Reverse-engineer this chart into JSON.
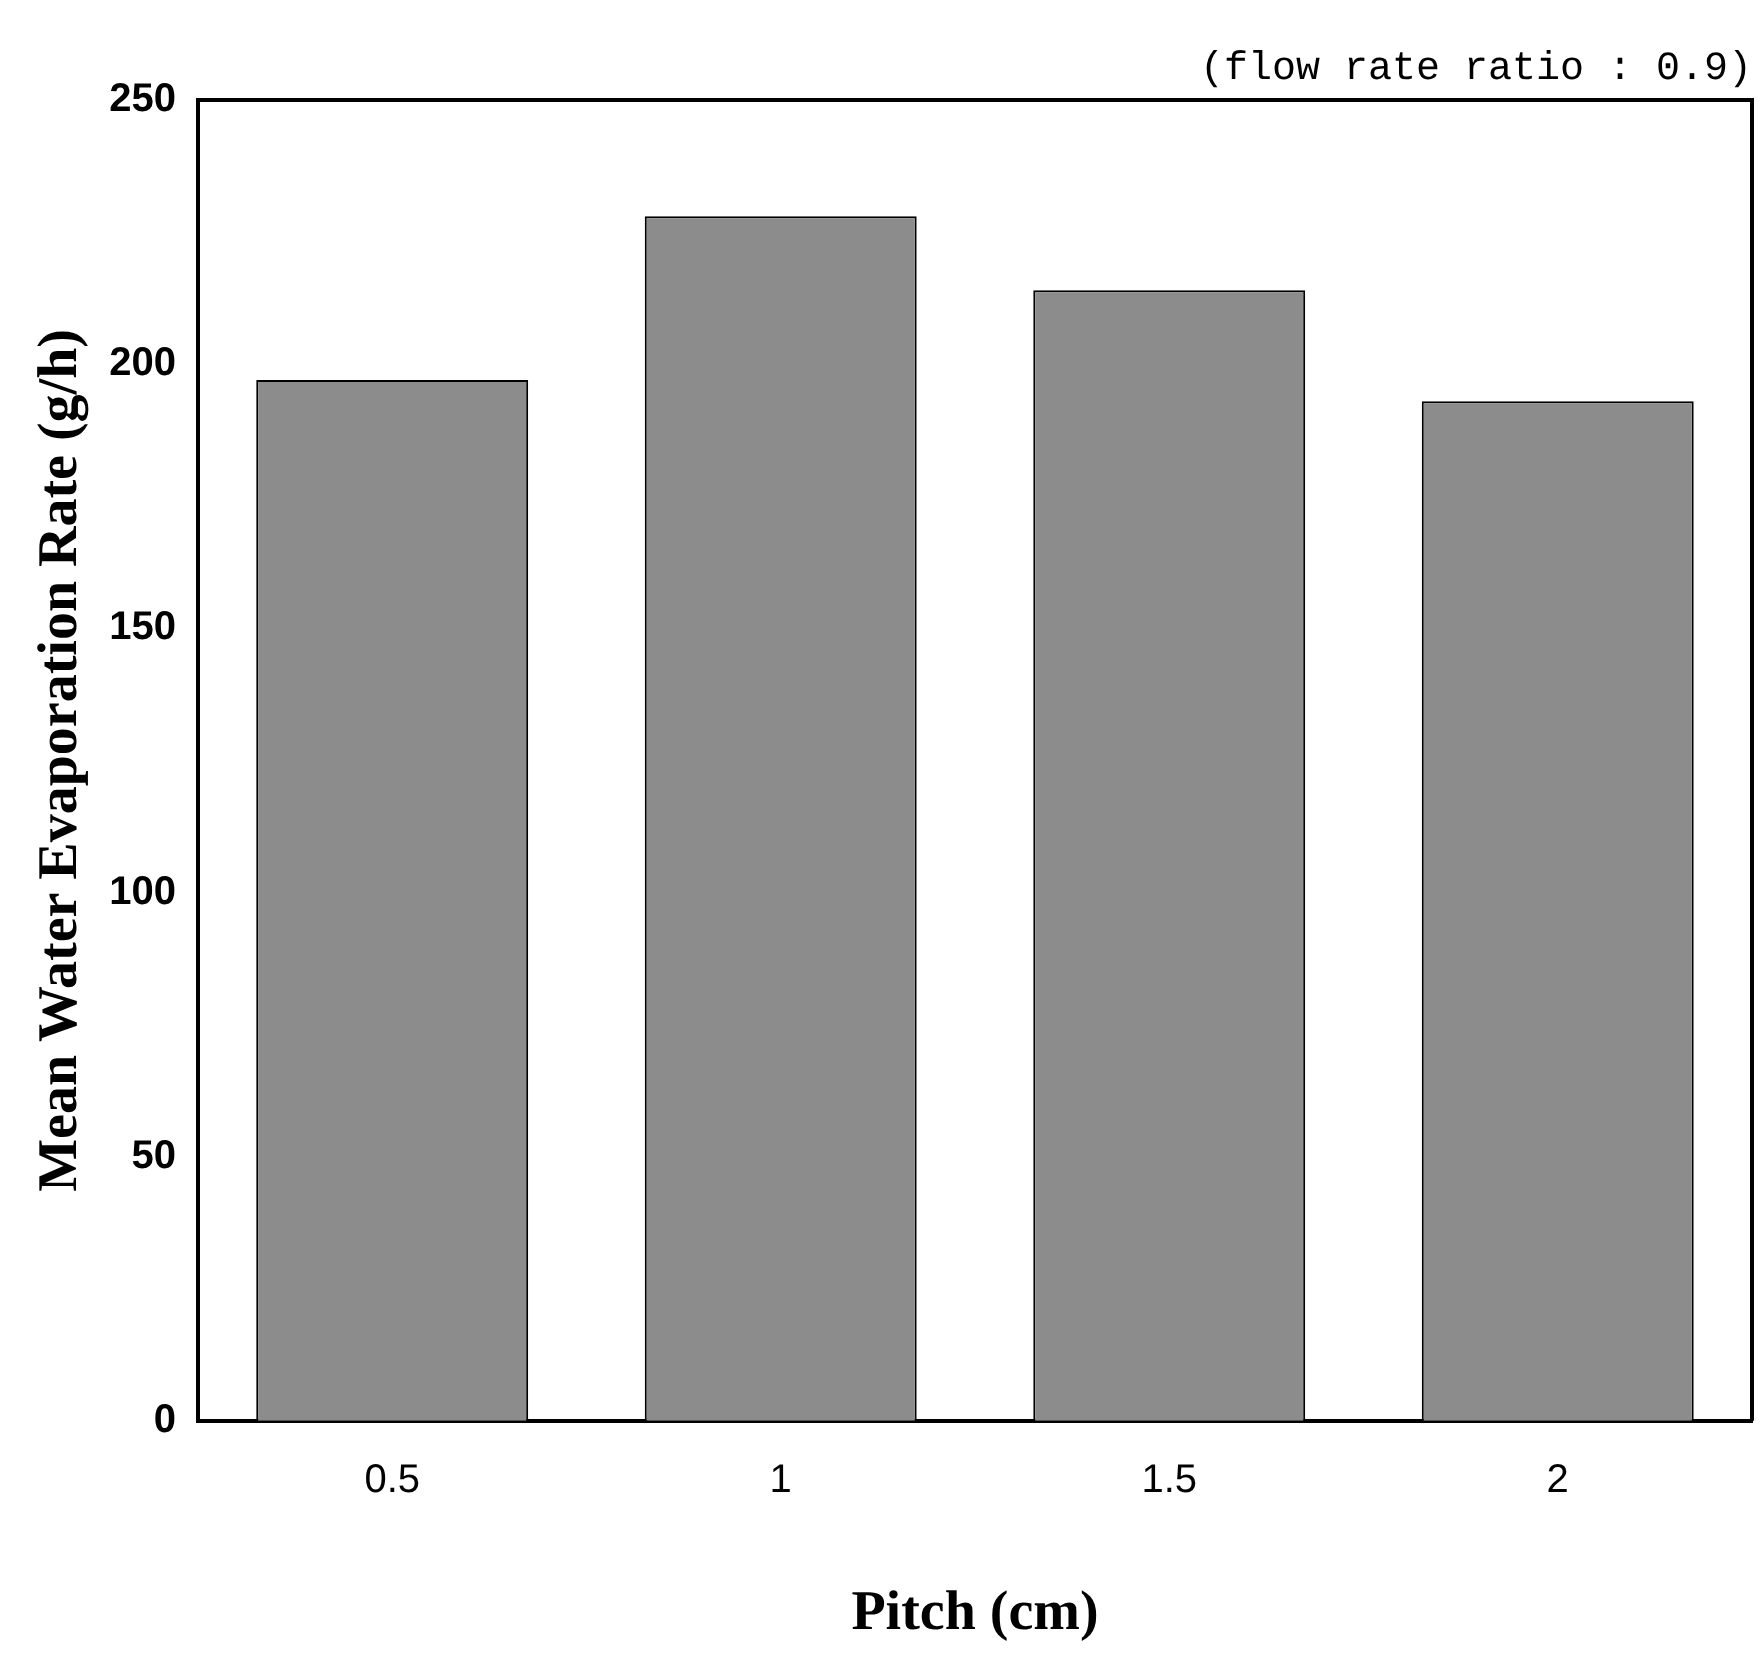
{
  "chart_data": {
    "type": "bar",
    "xlabel": "Pitch (cm)",
    "ylabel": "Mean Water Evaporation Rate (g/h)",
    "categories": [
      "0.5",
      "1",
      "1.5",
      "2"
    ],
    "values": [
      197,
      228,
      214,
      193
    ],
    "color": "#8c8c8c",
    "ylim": [
      0,
      250
    ],
    "yticks": [
      0,
      50,
      100,
      150,
      200,
      250
    ],
    "grid": false,
    "legend": false,
    "annotations": [
      "(flow rate ratio : 0.9)"
    ]
  }
}
